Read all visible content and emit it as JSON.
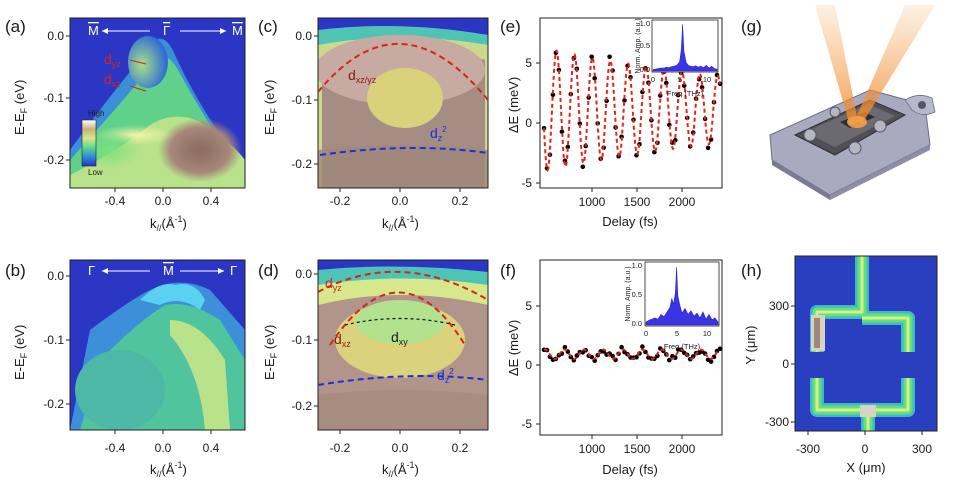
{
  "panel_labels": [
    "(a)",
    "(b)",
    "(c)",
    "(d)",
    "(e)",
    "(f)",
    "(g)",
    "(h)"
  ],
  "axes": {
    "ylabel_energy": "E-E",
    "ylabel_energy_sub": "F",
    "ylabel_energy_unit": " (eV)",
    "xlabel_k": "k",
    "xlabel_k_sub": "//",
    "xlabel_k_unit": "(Å",
    "xlabel_k_sup": "-1",
    "xlabel_k_close": ")",
    "ylabel_dE": "ΔE (meV)",
    "xlabel_delay": "Delay (fs)",
    "inset_ylabel": "Norm. Amp. (a.u.)",
    "inset_xlabel": "Freq (THz)",
    "xlabel_map": "X (μm)",
    "ylabel_map": "Y (μm)"
  },
  "ticks": {
    "energy_ab": [
      "0.0",
      "-0.1",
      "-0.2"
    ],
    "energy_cd": [
      "0.0",
      "-0.1",
      "-0.2"
    ],
    "k_ab": [
      "-0.4",
      "0.0",
      "0.4"
    ],
    "k_cd": [
      "-0.2",
      "0.0",
      "0.2"
    ],
    "dE": [
      "5",
      "0",
      "-5"
    ],
    "delay": [
      "1000",
      "1500",
      "2000"
    ],
    "inset_y": [
      "1.0",
      "0.5",
      "0.0"
    ],
    "inset_x": [
      "0",
      "5",
      "10"
    ],
    "map_x": [
      "-300",
      "0",
      "300"
    ],
    "map_y": [
      "300",
      "0",
      "-300"
    ]
  },
  "colorbar": {
    "high": "High",
    "low": "Low"
  },
  "panel_a": {
    "left_point": "M",
    "center_point": "Γ",
    "right_point": "M",
    "orbital_1": "d",
    "orbital_1_sub": "yz",
    "orbital_2": "d",
    "orbital_2_sub": "xz"
  },
  "panel_b": {
    "left_point": "Γ",
    "center_point": "M",
    "right_point": "Γ"
  },
  "panel_c": {
    "orbital_1": "d",
    "orbital_1_sub": "xz/yz",
    "orbital_2": "d",
    "orbital_2_sub": "z",
    "orbital_2_sup": "2"
  },
  "panel_d": {
    "orbital_1": "d",
    "orbital_1_sub": "yz",
    "orbital_2": "d",
    "orbital_2_sub": "xz",
    "orbital_3": "d",
    "orbital_3_sub": "xy",
    "orbital_4": "d",
    "orbital_4_sub": "z",
    "orbital_4_sup": "2"
  },
  "colors": {
    "data_points": "#000000",
    "fit_line": "#e0251b",
    "inset_fill": "#3a34e6",
    "band_red": "#d8231c",
    "band_blue": "#1d2fd6",
    "map_bg": "#2a3fbf",
    "map_trace": "#62e07a"
  },
  "chart_data": [
    {
      "panel": "(e)",
      "type": "scatter",
      "xlabel": "Delay (fs)",
      "ylabel": "ΔE (meV)",
      "xlim": [
        520,
        2350
      ],
      "ylim": [
        -6,
        7
      ],
      "fit": {
        "frequency_thz": 5.55,
        "amplitude_meV": 4.7,
        "decay_fs": 2900,
        "phase_rad": 1.2
      }
    },
    {
      "panel": "(e) inset",
      "type": "area",
      "xlabel": "Freq (THz)",
      "ylabel": "Norm. Amp. (a.u.)",
      "xlim": [
        0,
        12
      ],
      "ylim": [
        0,
        1.05
      ],
      "x": [
        0,
        0.5,
        1,
        1.5,
        2,
        2.5,
        3,
        3.5,
        4,
        4.5,
        5,
        5.3,
        5.55,
        5.8,
        6.2,
        6.6,
        7,
        7.5,
        8,
        8.5,
        9,
        9.5,
        10,
        10.5,
        11,
        11.5,
        12
      ],
      "values": [
        0.03,
        0.04,
        0.05,
        0.06,
        0.06,
        0.08,
        0.07,
        0.09,
        0.1,
        0.12,
        0.2,
        0.45,
        0.98,
        0.42,
        0.18,
        0.12,
        0.1,
        0.09,
        0.11,
        0.08,
        0.1,
        0.07,
        0.12,
        0.06,
        0.1,
        0.05,
        0.04
      ]
    },
    {
      "panel": "(f)",
      "type": "scatter",
      "xlabel": "Delay (fs)",
      "ylabel": "ΔE (meV)",
      "xlim": [
        520,
        2350
      ],
      "ylim": [
        -6,
        7
      ],
      "fit": {
        "frequency_thz": 5.1,
        "amplitude_meV": 0.35,
        "decay_fs": 100000,
        "phase_rad": 0.6
      }
    },
    {
      "panel": "(f) inset",
      "type": "area",
      "xlabel": "Freq (THz)",
      "ylabel": "Norm. Amp. (a.u.)",
      "xlim": [
        0,
        12
      ],
      "ylim": [
        0,
        1.05
      ],
      "x": [
        0,
        0.5,
        1,
        1.5,
        2,
        2.5,
        3,
        3.5,
        4,
        4.3,
        4.6,
        4.9,
        5.1,
        5.3,
        5.6,
        6,
        6.5,
        7,
        7.5,
        8,
        8.5,
        9,
        9.5,
        10,
        10.5,
        11,
        11.5,
        12
      ],
      "values": [
        0.05,
        0.08,
        0.1,
        0.12,
        0.1,
        0.18,
        0.14,
        0.22,
        0.3,
        0.45,
        0.35,
        0.55,
        0.98,
        0.5,
        0.35,
        0.2,
        0.28,
        0.18,
        0.24,
        0.15,
        0.2,
        0.12,
        0.22,
        0.1,
        0.18,
        0.09,
        0.12,
        0.05
      ]
    }
  ]
}
